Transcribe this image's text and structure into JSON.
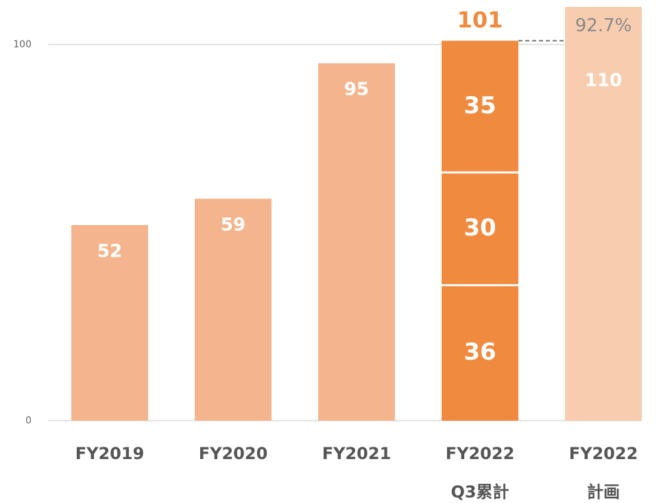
{
  "chart_data": {
    "type": "stacked_bar",
    "categories": [
      [
        "FY2019"
      ],
      [
        "FY2020"
      ],
      [
        "FY2021"
      ],
      [
        "FY2022",
        "Q3累計"
      ],
      [
        "FY2022",
        "計画"
      ]
    ],
    "series": [
      {
        "color": "#f4b58e",
        "values": [
          52,
          59,
          95,
          null,
          null
        ]
      },
      {
        "color": "#ef8a3e",
        "values": [
          null,
          null,
          null,
          36,
          null
        ]
      },
      {
        "color": "#ef8a3e",
        "values": [
          null,
          null,
          null,
          30,
          null
        ]
      },
      {
        "color": "#ef8a3e",
        "values": [
          null,
          null,
          null,
          35,
          null
        ]
      },
      {
        "color": "#f8cdaf",
        "values": [
          null,
          null,
          null,
          null,
          110
        ]
      }
    ],
    "totals": [
      null,
      null,
      null,
      101,
      null
    ],
    "total_color": "#ef8a3e",
    "annotations": [
      {
        "text": "92.7%"
      }
    ],
    "ylim": [
      0,
      110
    ],
    "yticks": [
      0,
      100
    ],
    "grid": true
  }
}
